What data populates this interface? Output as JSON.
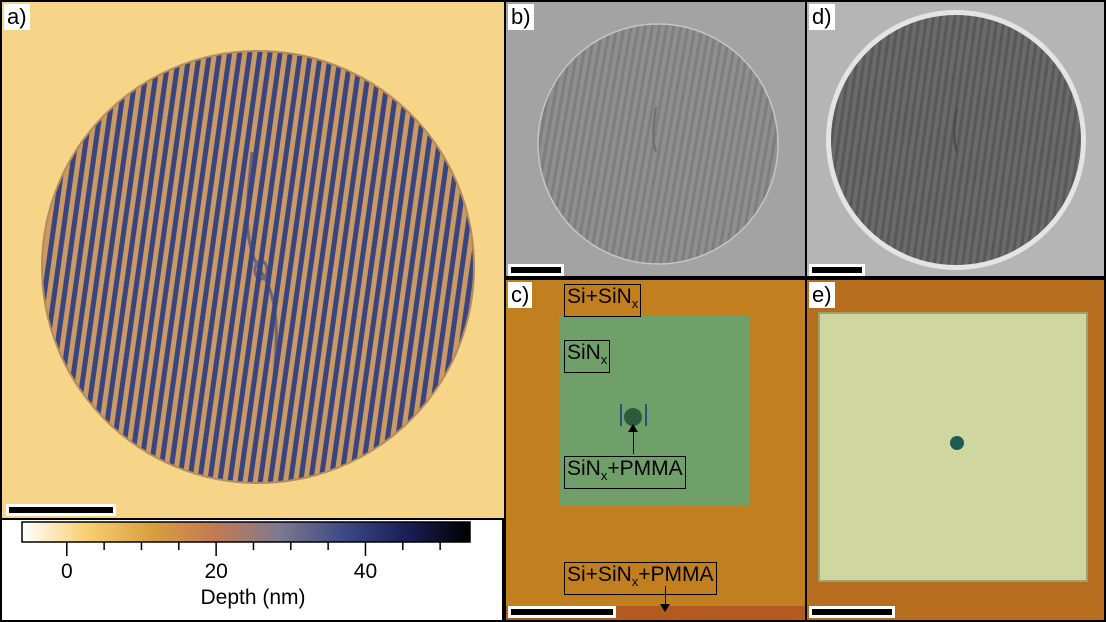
{
  "panels": {
    "a": {
      "label": "a)"
    },
    "b": {
      "label": "b)"
    },
    "c": {
      "label": "c)",
      "annotations": {
        "si_sinx": {
          "base": "Si+SiN",
          "sub": "x",
          "rest": ""
        },
        "sinx": {
          "base": "SiN",
          "sub": "x",
          "rest": ""
        },
        "sinx_pmma": {
          "base": "SiN",
          "sub": "x",
          "rest": "+PMMA"
        },
        "si_sinx_pmma": {
          "base": "Si+SiN",
          "sub": "x",
          "rest": "+PMMA"
        }
      }
    },
    "d": {
      "label": "d)"
    },
    "e": {
      "label": "e)"
    }
  },
  "colorbar": {
    "title": "Depth (nm)",
    "ticks": [
      "0",
      "20",
      "40"
    ],
    "min": -6,
    "max": 54,
    "tick_values": [
      0,
      20,
      40
    ],
    "colors": [
      "#ffffff",
      "#f7d070",
      "#d9a040",
      "#c27a52",
      "#7f7a8e",
      "#3e4a86",
      "#1a1f55",
      "#000000"
    ]
  }
}
